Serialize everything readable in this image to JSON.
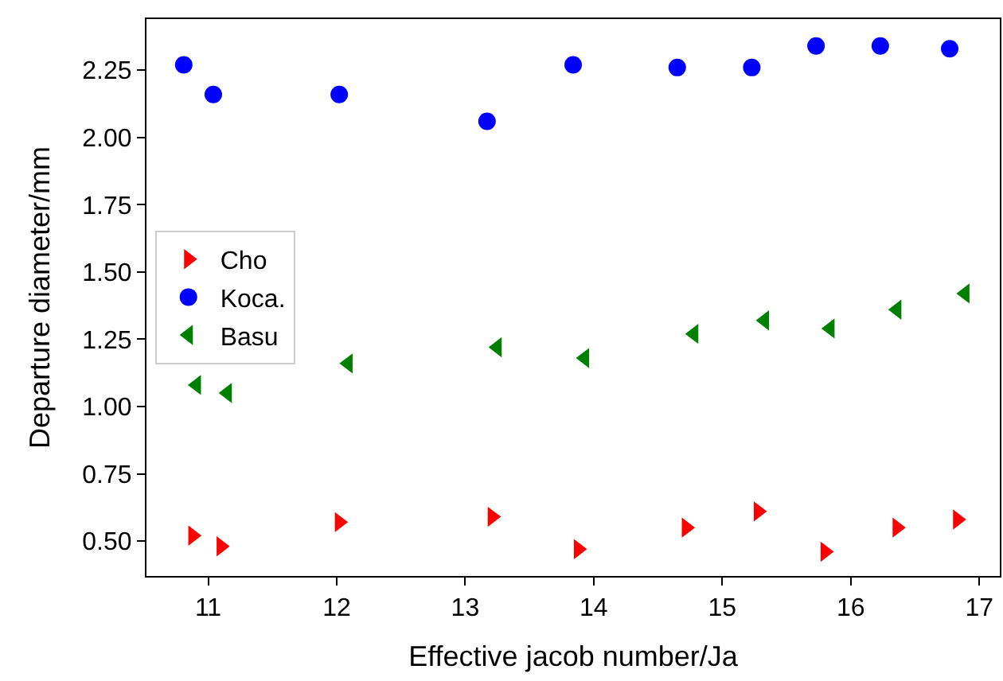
{
  "chart_data": {
    "type": "scatter",
    "xlabel": "Effective jacob number/Ja",
    "ylabel": "Departure diameter/mm",
    "xlim": [
      10.52,
      17.16
    ],
    "ylim": [
      0.37,
      2.44
    ],
    "xticks": [
      11,
      12,
      13,
      14,
      15,
      16,
      17
    ],
    "yticks": [
      {
        "value": 0.5,
        "label": "0.50"
      },
      {
        "value": 0.75,
        "label": "0.75"
      },
      {
        "value": 1.0,
        "label": "1.00"
      },
      {
        "value": 1.25,
        "label": "1.25"
      },
      {
        "value": 1.5,
        "label": "1.50"
      },
      {
        "value": 1.75,
        "label": "1.75"
      },
      {
        "value": 2.0,
        "label": "2.00"
      },
      {
        "value": 2.25,
        "label": "2.25"
      }
    ],
    "legend": "left",
    "series": [
      {
        "name": "Cho",
        "color": "#ff0000",
        "marker": "triangle-right",
        "x": [
          10.88,
          11.1,
          12.02,
          13.21,
          13.88,
          14.72,
          15.28,
          15.8,
          16.36,
          16.83
        ],
        "values": [
          0.52,
          0.48,
          0.57,
          0.59,
          0.47,
          0.55,
          0.61,
          0.46,
          0.55,
          0.58
        ]
      },
      {
        "name": "Koca.",
        "color": "#0000ff",
        "marker": "circle",
        "x": [
          10.81,
          11.04,
          12.02,
          13.17,
          13.84,
          14.65,
          15.23,
          15.73,
          16.23,
          16.77
        ],
        "values": [
          2.27,
          2.16,
          2.16,
          2.06,
          2.27,
          2.26,
          2.26,
          2.34,
          2.34,
          2.33
        ]
      },
      {
        "name": "Basu",
        "color": "#008000",
        "marker": "triangle-left",
        "x": [
          10.91,
          11.15,
          12.09,
          13.25,
          13.93,
          14.78,
          15.33,
          15.84,
          16.36,
          16.89
        ],
        "values": [
          1.08,
          1.05,
          1.16,
          1.22,
          1.18,
          1.27,
          1.32,
          1.29,
          1.36,
          1.42
        ]
      }
    ]
  }
}
